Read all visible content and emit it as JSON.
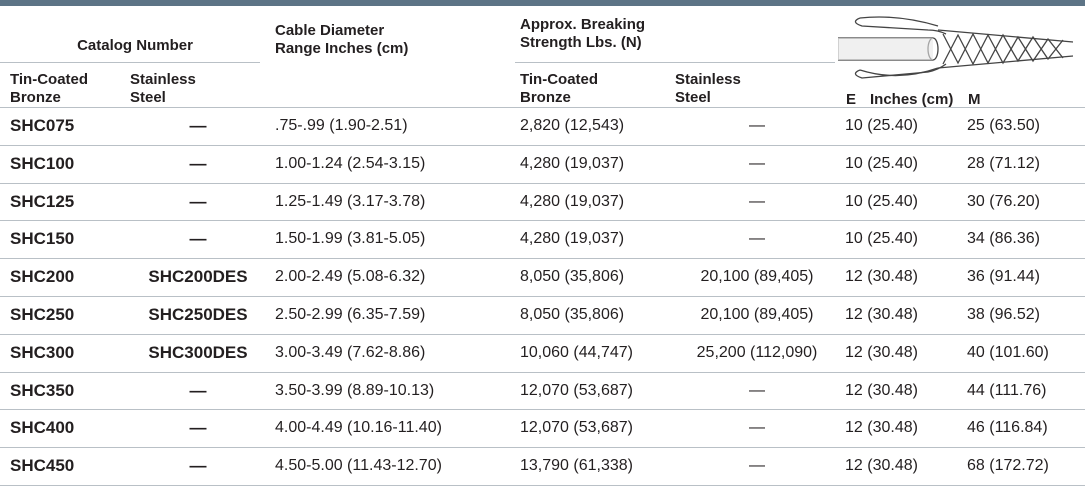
{
  "header": {
    "catalog_number": "Catalog Number",
    "cable_diameter": "Cable Diameter\nRange Inches (cm)",
    "breaking_strength": "Approx. Breaking\nStrength Lbs. (N)",
    "sub": [
      "Tin-Coated\nBronze",
      "Stainless\nSteel",
      "Tin-Coated\nBronze",
      "Stainless\nSteel"
    ],
    "length": {
      "e": "E",
      "unit": "Inches (cm)",
      "m": "M"
    }
  },
  "table": {
    "rows": [
      [
        "SHC075",
        "—",
        ".75-.99 (1.90-2.51)",
        "2,820 (12,543)",
        "—",
        "10 (25.40)",
        "25 (63.50)"
      ],
      [
        "SHC100",
        "—",
        "1.00-1.24 (2.54-3.15)",
        "4,280 (19,037)",
        "—",
        "10 (25.40)",
        "28 (71.12)"
      ],
      [
        "SHC125",
        "—",
        "1.25-1.49 (3.17-3.78)",
        "4,280 (19,037)",
        "—",
        "10 (25.40)",
        "30 (76.20)"
      ],
      [
        "SHC150",
        "—",
        "1.50-1.99 (3.81-5.05)",
        "4,280 (19,037)",
        "—",
        "10 (25.40)",
        "34 (86.36)"
      ],
      [
        "SHC200",
        "SHC200DES",
        "2.00-2.49 (5.08-6.32)",
        "8,050 (35,806)",
        "20,100 (89,405)",
        "12 (30.48)",
        "36 (91.44)"
      ],
      [
        "SHC250",
        "SHC250DES",
        "2.50-2.99 (6.35-7.59)",
        "8,050 (35,806)",
        "20,100 (89,405)",
        "12 (30.48)",
        "38 (96.52)"
      ],
      [
        "SHC300",
        "SHC300DES",
        "3.00-3.49 (7.62-8.86)",
        "10,060 (44,747)",
        "25,200 (112,090)",
        "12 (30.48)",
        "40 (101.60)"
      ],
      [
        "SHC350",
        "—",
        "3.50-3.99 (8.89-10.13)",
        "12,070 (53,687)",
        "—",
        "12 (30.48)",
        "44 (111.76)"
      ],
      [
        "SHC400",
        "—",
        "4.00-4.49 (10.16-11.40)",
        "12,070 (53,687)",
        "—",
        "12 (30.48)",
        "46 (116.84)"
      ],
      [
        "SHC450",
        "—",
        "4.50-5.00 (11.43-12.70)",
        "13,790 (61,338)",
        "—",
        "12 (30.48)",
        "68 (172.72)"
      ]
    ]
  }
}
